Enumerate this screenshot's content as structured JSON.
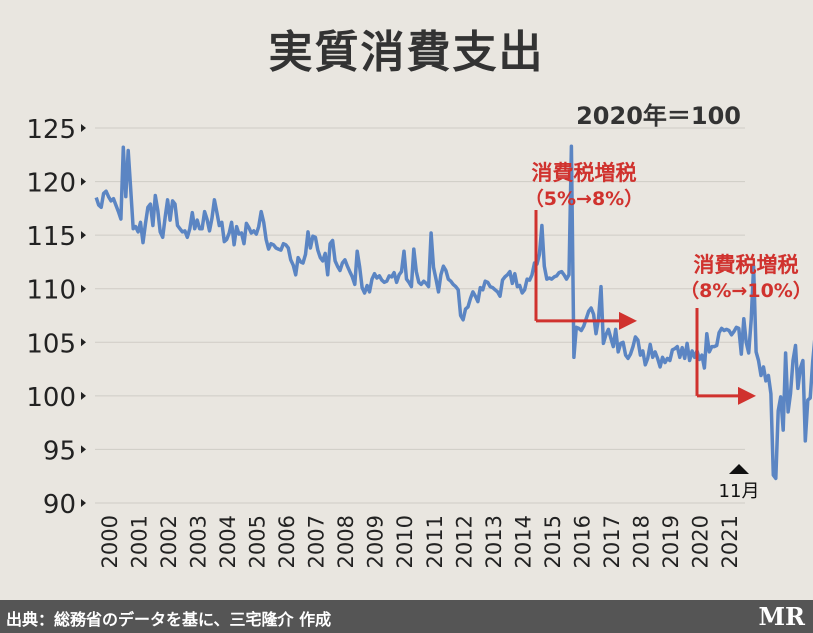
{
  "chart_data": {
    "type": "line",
    "title": "実質消費支出",
    "unit_label": "2020年＝100",
    "xlabel": "",
    "ylabel": "",
    "ylim": [
      90,
      125
    ],
    "yticks": [
      "90",
      "95",
      "100",
      "105",
      "110",
      "115",
      "120",
      "125"
    ],
    "xtick_labels": [
      "2000",
      "2001",
      "2002",
      "2003",
      "2004",
      "2005",
      "2006",
      "2007",
      "2008",
      "2009",
      "2010",
      "2011",
      "2012",
      "2013",
      "2014",
      "2015",
      "2016",
      "2017",
      "2018",
      "2019",
      "2020",
      "2021"
    ],
    "grid": true,
    "colors": {
      "line": "#5b85c3",
      "annotation": "#d0322e",
      "background": "#e9e6e0",
      "grid": "#cfccc6"
    },
    "series": [
      {
        "values": [
          118.5,
          117.8,
          117.6,
          118.9,
          119.1,
          118.6,
          118.2,
          118.4,
          117.8,
          117.2,
          116.5,
          123.2,
          118.6,
          122.9,
          119.3,
          115.6,
          115.8,
          115.3,
          116.2,
          114.3,
          116.1,
          117.6,
          117.9,
          115.9,
          118.7,
          117.3,
          115.3,
          114.8,
          116.7,
          118.3,
          116.4,
          118.2,
          117.9,
          115.9,
          115.6,
          115.3,
          115.4,
          114.8,
          115.6,
          117.1,
          115.6,
          116.4,
          115.6,
          115.6,
          117.2,
          116.5,
          115.4,
          116.6,
          118.3,
          117.1,
          115.9,
          116.2,
          114.4,
          114.6,
          115.2,
          116.2,
          114.1,
          115.8,
          115.1,
          115.2,
          114.2,
          116.1,
          115.7,
          115.2,
          115.4,
          115.1,
          115.8,
          117.2,
          116.2,
          114.6,
          113.7,
          114.2,
          114.1,
          113.8,
          113.7,
          113.6,
          114.2,
          114.1,
          113.8,
          112.7,
          112.2,
          111.3,
          112.9,
          112.5,
          112.4,
          113.2,
          115.3,
          113.8,
          114.9,
          114.8,
          113.6,
          112.9,
          112.6,
          113.3,
          111.3,
          114.2,
          114.5,
          112.6,
          112.1,
          111.7,
          112.4,
          112.7,
          112.1,
          111.6,
          111.1,
          110.4,
          113.5,
          112.0,
          110.1,
          109.6,
          110.3,
          109.7,
          110.9,
          111.4,
          111.0,
          111.2,
          110.8,
          110.6,
          110.7,
          111.2,
          111.1,
          111.5,
          110.6,
          111.3,
          111.6,
          113.5,
          110.9,
          110.6,
          110.2,
          113.7,
          111.6,
          110.6,
          110.4,
          110.7,
          110.5,
          110.2,
          115.2,
          112.0,
          110.9,
          109.7,
          111.3,
          112.1,
          111.7,
          110.9,
          110.7,
          110.4,
          110.2,
          109.9,
          107.5,
          107.1,
          108.1,
          108.3,
          109.1,
          109.7,
          109.3,
          108.8,
          110.1,
          109.9,
          110.7,
          110.6,
          110.2,
          110.1,
          109.9,
          109.7,
          109.3,
          110.8,
          111.1,
          111.3,
          111.6,
          110.5,
          111.4,
          110.2,
          110.3,
          109.6,
          109.9,
          110.9,
          110.8,
          111.3,
          112.4,
          112.3,
          113.2,
          115.9,
          112.1,
          110.9,
          111.0,
          110.9,
          111.1,
          111.2,
          111.5,
          111.6,
          111.3,
          110.9,
          111.3,
          123.3,
          103.6,
          106.4,
          106.3,
          106.1,
          106.5,
          107.2,
          107.9,
          108.2,
          107.6,
          105.8,
          107.2,
          110.2,
          104.9,
          105.7,
          106.2,
          105.4,
          104.6,
          106.2,
          104.1,
          104.9,
          105.0,
          103.8,
          103.5,
          103.9,
          104.6,
          105.5,
          105.2,
          103.8,
          104.2,
          102.9,
          103.5,
          104.8,
          103.6,
          104.1,
          103.5,
          102.7,
          103.6,
          103.1,
          103.5,
          103.3,
          104.3,
          104.4,
          104.6,
          103.6,
          104.5,
          103.5,
          104.9,
          103.3,
          104.2,
          103.6,
          104.2,
          103.4,
          103.8,
          102.6,
          105.8,
          104.1,
          104.6,
          104.6,
          104.7,
          105.9,
          106.3,
          106.1,
          106.2,
          106.1,
          105.7,
          106.0,
          106.4,
          106.3,
          103.9,
          107.2,
          105.0,
          104.0,
          107.1,
          112.1,
          104.1,
          103.3,
          101.9,
          102.7,
          101.4,
          101.9,
          100.2,
          92.6,
          92.3,
          98.6,
          99.9,
          96.8,
          104.0,
          98.5,
          100.2,
          103.3,
          104.7,
          100.7,
          102.6,
          103.3,
          95.8,
          99.6,
          99.8,
          103.2,
          105.7,
          104.6,
          101.2,
          99.9,
          97.6,
          95.5,
          98.4,
          103.6,
          102.4,
          101.4
        ]
      }
    ],
    "annotations": [
      {
        "title": "消費税増税",
        "detail": "（5%→8%）",
        "drop_value": 107,
        "arrow_end_value": 107
      },
      {
        "title": "消費税増税",
        "detail": "（8%→10%）",
        "drop_value": 100,
        "arrow_end_value": 100
      }
    ],
    "end_marker": {
      "text": "11月"
    }
  },
  "footer": {
    "source": "出典：総務省のデータを基に、三宅隆介 作成",
    "logo": "MR"
  }
}
